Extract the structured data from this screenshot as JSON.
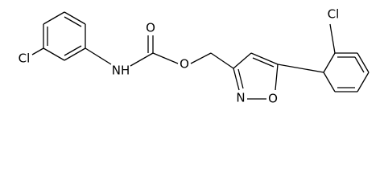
{
  "atoms": [
    {
      "label": "Cl"
    },
    {
      "label": "NH"
    },
    {
      "label": "O"
    },
    {
      "label": "O"
    },
    {
      "label": "N"
    },
    {
      "label": "O"
    },
    {
      "label": "Cl"
    }
  ]
}
